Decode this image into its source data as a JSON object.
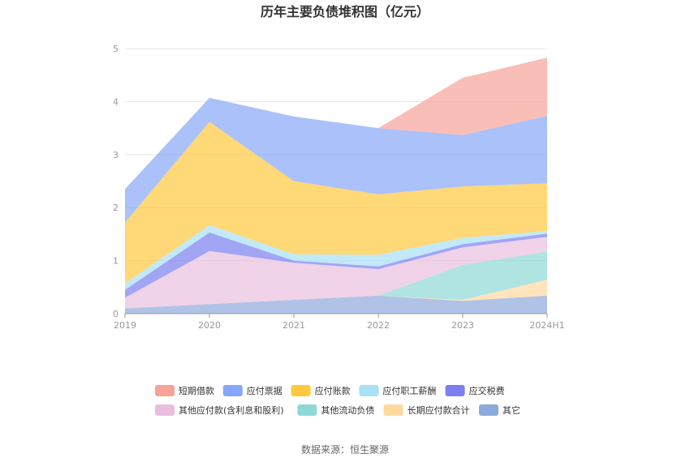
{
  "source_label": "数据来源：恒生聚源",
  "chart_data": {
    "type": "area",
    "title": "历年主要负债堆积图（亿元）",
    "xlabel": "",
    "ylabel": "",
    "categories": [
      "2019",
      "2020",
      "2021",
      "2022",
      "2023",
      "2024H1"
    ],
    "ylim": [
      0,
      5
    ],
    "yticks": [
      "0",
      "1",
      "2",
      "3",
      "4",
      "5"
    ],
    "grid": true,
    "legend_position": "bottom",
    "stacked": true,
    "series": [
      {
        "name": "其它",
        "color": "#8eaadb",
        "values": [
          0.1,
          0.18,
          0.26,
          0.34,
          0.24,
          0.34
        ]
      },
      {
        "name": "长期应付款合计",
        "color": "#ffd9a0",
        "values": [
          0.0,
          0.0,
          0.0,
          0.0,
          0.02,
          0.3
        ]
      },
      {
        "name": "其他流动负债",
        "color": "#8dd9d6",
        "values": [
          0.0,
          0.0,
          0.0,
          0.0,
          0.66,
          0.53
        ]
      },
      {
        "name": "其他应付款(含利息和股利)",
        "color": "#e9bfdf",
        "values": [
          0.2,
          1.0,
          0.7,
          0.5,
          0.33,
          0.28
        ]
      },
      {
        "name": "应交税费",
        "color": "#7b7ff0",
        "values": [
          0.15,
          0.35,
          0.04,
          0.05,
          0.06,
          0.06
        ]
      },
      {
        "name": "应付职工薪酬",
        "color": "#a8e0f5",
        "values": [
          0.12,
          0.14,
          0.12,
          0.22,
          0.12,
          0.05
        ]
      },
      {
        "name": "应付账款",
        "color": "#ffc83d",
        "values": [
          1.15,
          1.95,
          1.38,
          1.14,
          0.97,
          0.9
        ]
      },
      {
        "name": "应付票据",
        "color": "#86a6f8",
        "values": [
          0.63,
          0.45,
          1.22,
          1.25,
          0.97,
          1.27
        ]
      },
      {
        "name": "短期借款",
        "color": "#f8a29a",
        "values": [
          0.0,
          0.0,
          0.0,
          0.0,
          1.08,
          1.1
        ]
      }
    ],
    "legend_order": [
      "短期借款",
      "应付票据",
      "应付账款",
      "应付职工薪酬",
      "应交税费",
      "其他应付款(含利息和股利)",
      "其他流动负债",
      "长期应付款合计",
      "其它"
    ]
  }
}
